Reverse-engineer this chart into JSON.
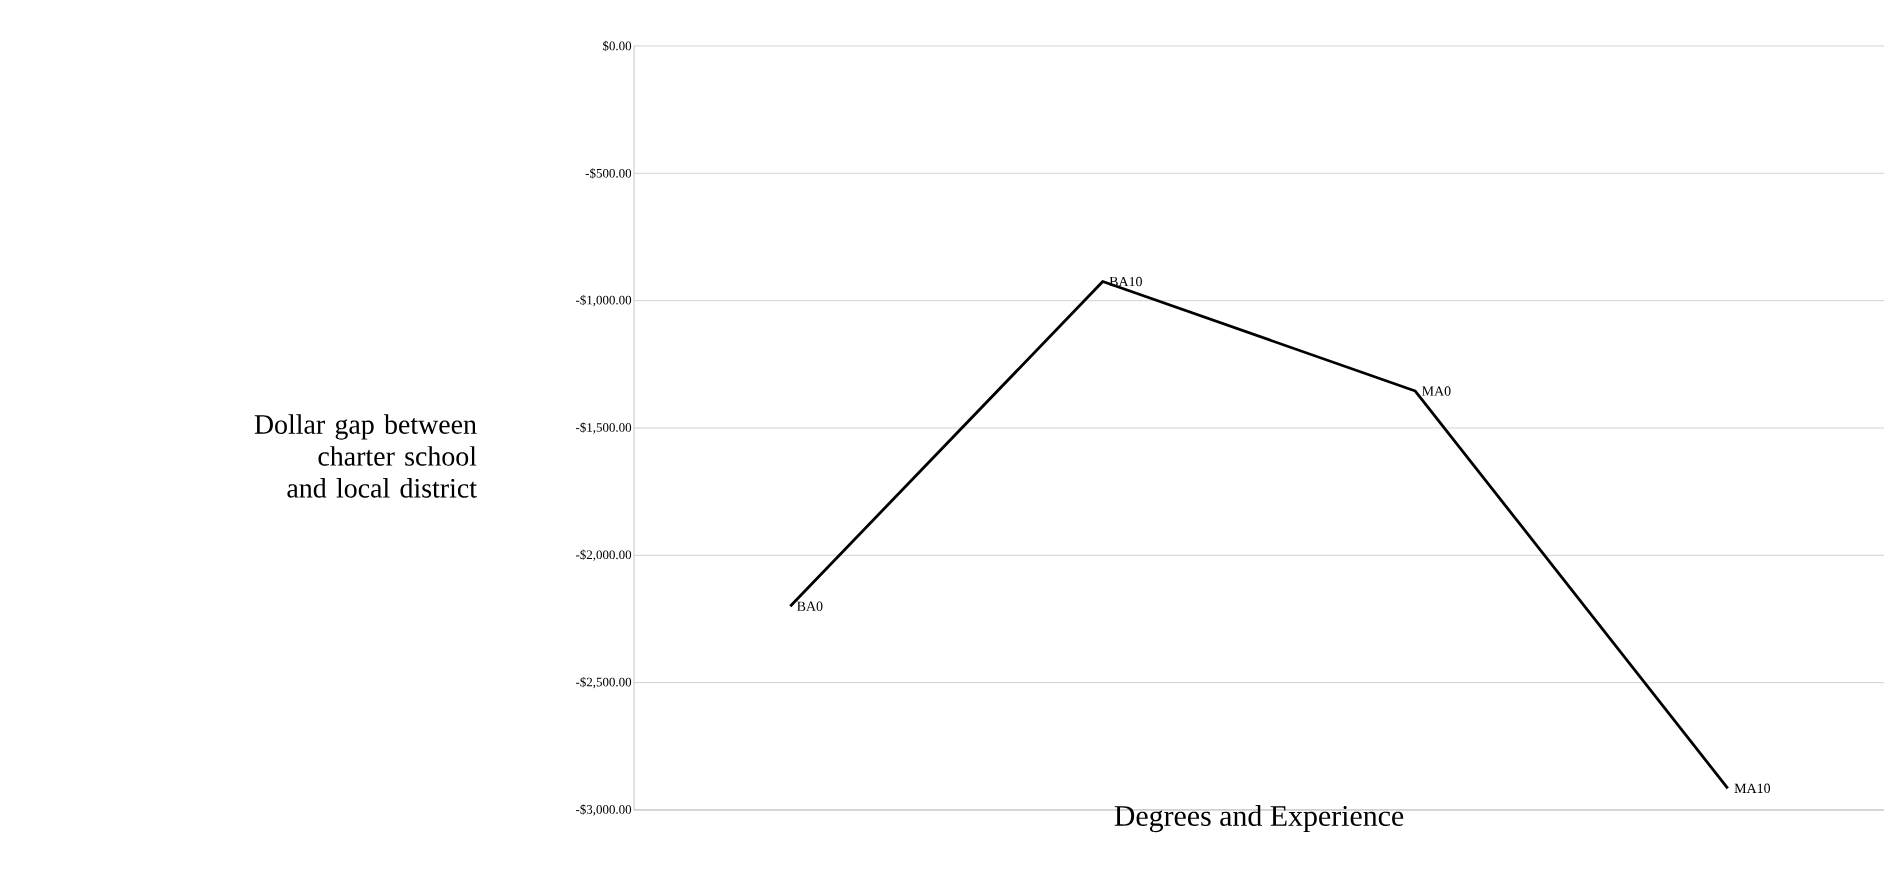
{
  "chart_data": {
    "type": "line",
    "ylabel": "Dollar gap between charter school and local district",
    "xlabel": "Degrees and Experience",
    "categories": [
      "BA0",
      "BA10",
      "MA0",
      "MA10"
    ],
    "values": [
      -2200,
      -925,
      -1355,
      -2915
    ],
    "color": "#000000",
    "ylim": [
      -3000,
      0
    ],
    "yticks": [
      {
        "value": -3000,
        "label": "-$3,000.00"
      },
      {
        "value": -2500,
        "label": "-$2,500.00"
      },
      {
        "value": -2000,
        "label": "-$2,000.00"
      },
      {
        "value": -1500,
        "label": "-$1,500.00"
      },
      {
        "value": -1000,
        "label": "-$1,000.00"
      },
      {
        "value": -500,
        "label": "-$500.00"
      },
      {
        "value": 0,
        "label": "$0.00"
      }
    ],
    "grid": "y",
    "tick_labels": "y",
    "marker": "none",
    "line_style": "solid"
  }
}
